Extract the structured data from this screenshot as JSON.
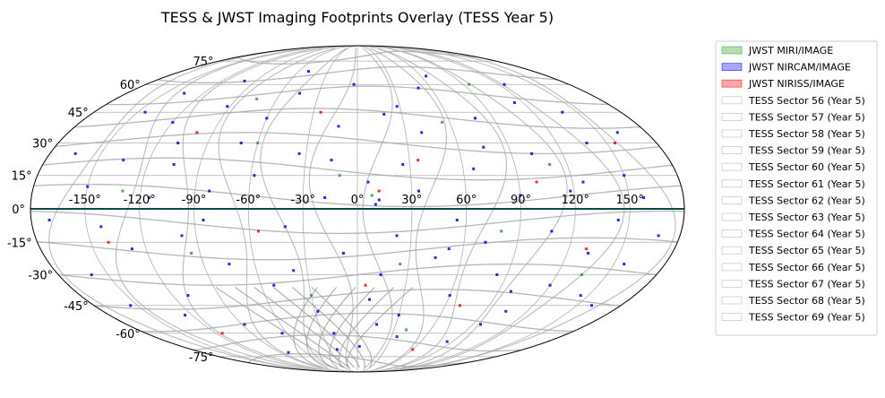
{
  "chart_data": {
    "type": "scatter",
    "projection": "aitoff-mollweide-allsky",
    "title": "TESS & JWST Imaging Footprints Overlay (TESS Year 5)",
    "xlabel": "",
    "ylabel": "",
    "grid": true,
    "legend_placement": "outside-right",
    "lon_ticks": [
      "-150°",
      "-120°",
      "-90°",
      "-60°",
      "-30°",
      "0°",
      "30°",
      "60°",
      "90°",
      "120°",
      "150°"
    ],
    "lon_tick_values": [
      -150,
      -120,
      -90,
      -60,
      -30,
      0,
      30,
      60,
      90,
      120,
      150
    ],
    "lat_ticks": [
      "75°",
      "60°",
      "45°",
      "30°",
      "15°",
      "0°",
      "-15°",
      "-30°",
      "-45°",
      "-60°",
      "-75°"
    ],
    "lat_tick_values": [
      75,
      60,
      45,
      30,
      15,
      0,
      -15,
      -30,
      -45,
      -60,
      -75
    ],
    "xlim": [
      -180,
      180
    ],
    "ylim": [
      -90,
      90
    ],
    "series": [
      {
        "name": "JWST MIRI/IMAGE",
        "kind": "patch",
        "color": "#2ca02c",
        "alpha": 0.35
      },
      {
        "name": "JWST NIRCAM/IMAGE",
        "kind": "patch",
        "color": "#0000ff",
        "alpha": 0.35
      },
      {
        "name": "JWST NIRISS/IMAGE",
        "kind": "patch",
        "color": "#ff0000",
        "alpha": 0.35
      },
      {
        "name": "TESS Sector 56 (Year 5)",
        "kind": "outline",
        "color": "#aaaaaa"
      },
      {
        "name": "TESS Sector 57 (Year 5)",
        "kind": "outline",
        "color": "#aaaaaa"
      },
      {
        "name": "TESS Sector 58 (Year 5)",
        "kind": "outline",
        "color": "#aaaaaa"
      },
      {
        "name": "TESS Sector 59 (Year 5)",
        "kind": "outline",
        "color": "#aaaaaa"
      },
      {
        "name": "TESS Sector 60 (Year 5)",
        "kind": "outline",
        "color": "#aaaaaa"
      },
      {
        "name": "TESS Sector 61 (Year 5)",
        "kind": "outline",
        "color": "#aaaaaa"
      },
      {
        "name": "TESS Sector 62 (Year 5)",
        "kind": "outline",
        "color": "#aaaaaa"
      },
      {
        "name": "TESS Sector 63 (Year 5)",
        "kind": "outline",
        "color": "#aaaaaa"
      },
      {
        "name": "TESS Sector 64 (Year 5)",
        "kind": "outline",
        "color": "#aaaaaa"
      },
      {
        "name": "TESS Sector 65 (Year 5)",
        "kind": "outline",
        "color": "#aaaaaa"
      },
      {
        "name": "TESS Sector 66 (Year 5)",
        "kind": "outline",
        "color": "#aaaaaa"
      },
      {
        "name": "TESS Sector 67 (Year 5)",
        "kind": "outline",
        "color": "#aaaaaa"
      },
      {
        "name": "TESS Sector 68 (Year 5)",
        "kind": "outline",
        "color": "#aaaaaa"
      },
      {
        "name": "TESS Sector 69 (Year 5)",
        "kind": "outline",
        "color": "#aaaaaa"
      }
    ],
    "jwst_footprints": {
      "nircam": [
        [
          -150,
          10
        ],
        [
          -142,
          -8
        ],
        [
          -135,
          22
        ],
        [
          -128,
          -18
        ],
        [
          -120,
          40
        ],
        [
          -115,
          5
        ],
        [
          -110,
          -40
        ],
        [
          -105,
          20
        ],
        [
          -98,
          -12
        ],
        [
          -92,
          48
        ],
        [
          -88,
          -55
        ],
        [
          -82,
          8
        ],
        [
          -75,
          -25
        ],
        [
          -70,
          30
        ],
        [
          -64,
          -60
        ],
        [
          -58,
          15
        ],
        [
          -52,
          -35
        ],
        [
          -45,
          55
        ],
        [
          -40,
          -8
        ],
        [
          -34,
          25
        ],
        [
          -28,
          -48
        ],
        [
          -22,
          -70
        ],
        [
          -18,
          5
        ],
        [
          -12,
          38
        ],
        [
          -8,
          -20
        ],
        [
          -3,
          60
        ],
        [
          2,
          -68
        ],
        [
          6,
          12
        ],
        [
          10,
          2
        ],
        [
          12,
          4
        ],
        [
          14,
          -30
        ],
        [
          18,
          44
        ],
        [
          22,
          -12
        ],
        [
          26,
          20
        ],
        [
          30,
          -50
        ],
        [
          34,
          8
        ],
        [
          40,
          35
        ],
        [
          45,
          -22
        ],
        [
          50,
          58
        ],
        [
          55,
          -5
        ],
        [
          60,
          -40
        ],
        [
          66,
          18
        ],
        [
          72,
          -15
        ],
        [
          78,
          42
        ],
        [
          84,
          -30
        ],
        [
          90,
          6
        ],
        [
          96,
          -55
        ],
        [
          102,
          25
        ],
        [
          108,
          -10
        ],
        [
          114,
          50
        ],
        [
          120,
          -35
        ],
        [
          126,
          12
        ],
        [
          132,
          -20
        ],
        [
          138,
          30
        ],
        [
          144,
          -5
        ],
        [
          150,
          15
        ],
        [
          156,
          -25
        ],
        [
          162,
          35
        ],
        [
          168,
          -12
        ],
        [
          -160,
          -30
        ],
        [
          -165,
          25
        ],
        [
          -170,
          -5
        ],
        [
          -145,
          45
        ],
        [
          -125,
          -50
        ],
        [
          -100,
          62
        ],
        [
          -80,
          -72
        ],
        [
          -50,
          68
        ],
        [
          -20,
          -60
        ],
        [
          15,
          -55
        ],
        [
          35,
          -62
        ],
        [
          65,
          65
        ],
        [
          85,
          -65
        ],
        [
          105,
          -48
        ],
        [
          125,
          60
        ],
        [
          145,
          -40
        ],
        [
          160,
          -45
        ],
        [
          -155,
          -45
        ],
        [
          -135,
          55
        ],
        [
          -108,
          30
        ],
        [
          -85,
          -5
        ],
        [
          -60,
          42
        ],
        [
          -38,
          -28
        ],
        [
          -15,
          22
        ],
        [
          8,
          -42
        ],
        [
          28,
          48
        ],
        [
          52,
          -18
        ],
        [
          75,
          28
        ],
        [
          98,
          -38
        ],
        [
          118,
          8
        ],
        [
          140,
          45
        ],
        [
          158,
          5
        ]
      ],
      "miri": [
        [
          -130,
          8
        ],
        [
          -95,
          -20
        ],
        [
          -60,
          30
        ],
        [
          -30,
          -40
        ],
        [
          -10,
          15
        ],
        [
          8,
          6
        ],
        [
          25,
          -25
        ],
        [
          55,
          40
        ],
        [
          80,
          -10
        ],
        [
          110,
          20
        ],
        [
          135,
          -30
        ],
        [
          -75,
          52
        ],
        [
          40,
          -58
        ],
        [
          95,
          60
        ]
      ],
      "niriss": [
        [
          -140,
          -15
        ],
        [
          -100,
          35
        ],
        [
          -55,
          -10
        ],
        [
          -25,
          45
        ],
        [
          5,
          -35
        ],
        [
          12,
          8
        ],
        [
          35,
          22
        ],
        [
          70,
          -45
        ],
        [
          100,
          12
        ],
        [
          130,
          -18
        ],
        [
          155,
          30
        ],
        [
          -115,
          -60
        ],
        [
          60,
          -70
        ]
      ]
    },
    "tess_sectors": {
      "lat_bands": [
        78,
        66,
        54,
        42,
        30,
        18,
        6,
        -6,
        -18,
        -30,
        -42,
        -54,
        -66,
        -78
      ],
      "lon_meridians": [
        -165,
        -135,
        -105,
        -75,
        -45,
        -15,
        15,
        45,
        75,
        105,
        135,
        165
      ]
    },
    "reference_line": {
      "lat": 0,
      "color": "#0d4a4a"
    }
  },
  "colors": {
    "frame": "#000000",
    "grid": "#b0b0b0",
    "tess_outline": "#aaaaaa"
  }
}
